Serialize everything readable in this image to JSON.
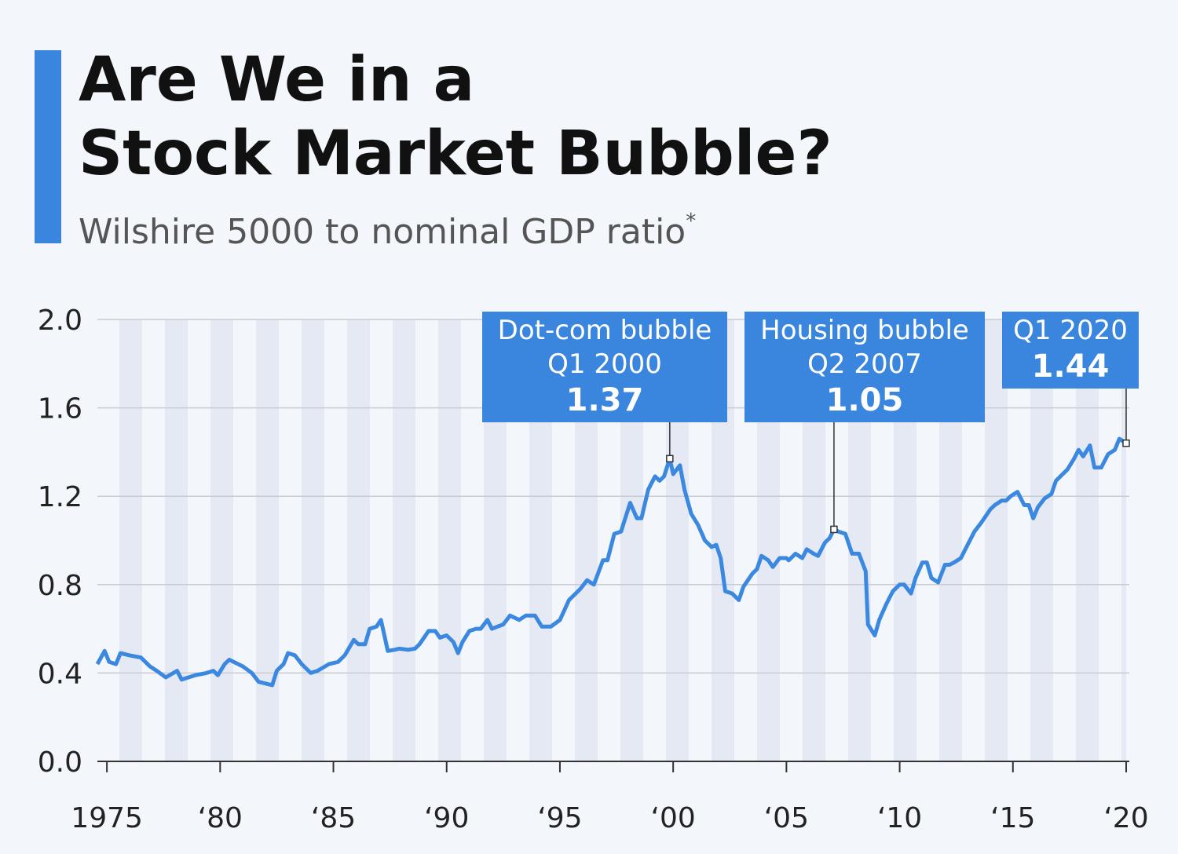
{
  "chart_data": {
    "type": "line",
    "title": [
      "Are We in a",
      "Stock Market Bubble?"
    ],
    "subtitle": "Wilshire 5000 to nominal GDP ratio",
    "subtitle_note": "*",
    "xlim": [
      1974.58,
      2020
    ],
    "xticks": [
      1975,
      {
        "value": 1980,
        "label": "‘80"
      },
      {
        "value": 1985,
        "label": "‘85"
      },
      {
        "value": 1990,
        "label": "‘90"
      },
      {
        "value": 1995,
        "label": "‘95"
      },
      {
        "value": 2000,
        "label": "‘00"
      },
      {
        "value": 2005,
        "label": "‘05"
      },
      {
        "value": 2010,
        "label": "‘10"
      },
      {
        "value": 2015,
        "label": "‘15"
      },
      {
        "value": 2020,
        "label": "‘20"
      }
    ],
    "ylim": [
      0,
      2.0
    ],
    "yticks": [
      {
        "value": 0,
        "label": "0.0"
      },
      0.4,
      0.8,
      1.2,
      1.6,
      {
        "value": 2,
        "label": "2.0"
      }
    ],
    "grid": true,
    "x": [
      1974.58,
      1974.9,
      1975.1,
      1975.4,
      1975.6,
      1976.0,
      1976.5,
      1976.9,
      1977.2,
      1977.6,
      1978.1,
      1978.3,
      1978.9,
      1979.4,
      1979.7,
      1979.9,
      1980.2,
      1980.4,
      1980.8,
      1981.0,
      1981.4,
      1981.7,
      1982.1,
      1982.3,
      1982.5,
      1982.8,
      1983.0,
      1983.3,
      1983.6,
      1984.0,
      1984.3,
      1984.8,
      1985.2,
      1985.5,
      1985.9,
      1986.1,
      1986.4,
      1986.6,
      1986.9,
      1987.1,
      1987.4,
      1987.7,
      1987.9,
      1988.3,
      1988.6,
      1988.8,
      1989.0,
      1989.2,
      1989.5,
      1989.7,
      1990.0,
      1990.3,
      1990.5,
      1990.7,
      1991.0,
      1991.3,
      1991.5,
      1991.8,
      1992.0,
      1992.5,
      1992.8,
      1993.2,
      1993.5,
      1993.9,
      1994.2,
      1994.6,
      1995.0,
      1995.4,
      1995.9,
      1996.2,
      1996.5,
      1996.9,
      1997.1,
      1997.4,
      1997.7,
      1998.1,
      1998.4,
      1998.6,
      1998.9,
      1999.2,
      1999.4,
      1999.6,
      1999.85,
      2000.0,
      2000.3,
      2000.5,
      2000.8,
      2001.1,
      2001.4,
      2001.7,
      2001.9,
      2002.1,
      2002.3,
      2002.6,
      2002.9,
      2003.1,
      2003.5,
      2003.7,
      2003.9,
      2004.2,
      2004.4,
      2004.7,
      2005.0,
      2005.1,
      2005.4,
      2005.7,
      2005.9,
      2006.2,
      2006.4,
      2006.7,
      2006.9,
      2007.1,
      2007.3,
      2007.6,
      2007.9,
      2008.2,
      2008.5,
      2008.6,
      2008.9,
      2009.1,
      2009.4,
      2009.7,
      2010.0,
      2010.2,
      2010.5,
      2010.7,
      2011.0,
      2011.2,
      2011.4,
      2011.7,
      2012.0,
      2012.2,
      2012.4,
      2012.7,
      2013.0,
      2013.3,
      2013.6,
      2014.0,
      2014.2,
      2014.5,
      2014.7,
      2014.9,
      2015.2,
      2015.5,
      2015.7,
      2015.9,
      2016.1,
      2016.4,
      2016.7,
      2016.9,
      2017.2,
      2017.4,
      2017.7,
      2017.9,
      2018.1,
      2018.4,
      2018.6,
      2018.9,
      2019.2,
      2019.5,
      2019.7,
      2020.0
    ],
    "series": [
      {
        "color": "#3b88e0",
        "values": [
          0.44,
          0.5,
          0.45,
          0.44,
          0.49,
          0.48,
          0.47,
          0.43,
          0.41,
          0.38,
          0.41,
          0.37,
          0.39,
          0.4,
          0.41,
          0.39,
          0.44,
          0.46,
          0.44,
          0.43,
          0.4,
          0.36,
          0.35,
          0.345,
          0.41,
          0.44,
          0.49,
          0.48,
          0.44,
          0.4,
          0.41,
          0.44,
          0.45,
          0.48,
          0.55,
          0.53,
          0.53,
          0.6,
          0.61,
          0.64,
          0.5,
          0.505,
          0.51,
          0.505,
          0.51,
          0.53,
          0.56,
          0.59,
          0.59,
          0.56,
          0.57,
          0.54,
          0.49,
          0.54,
          0.59,
          0.6,
          0.6,
          0.64,
          0.6,
          0.62,
          0.66,
          0.64,
          0.66,
          0.66,
          0.61,
          0.61,
          0.64,
          0.73,
          0.78,
          0.82,
          0.8,
          0.91,
          0.91,
          1.03,
          1.04,
          1.17,
          1.1,
          1.1,
          1.23,
          1.29,
          1.27,
          1.29,
          1.37,
          1.3,
          1.34,
          1.23,
          1.12,
          1.07,
          1.0,
          0.97,
          0.98,
          0.92,
          0.77,
          0.76,
          0.73,
          0.79,
          0.85,
          0.87,
          0.93,
          0.91,
          0.88,
          0.92,
          0.92,
          0.91,
          0.94,
          0.92,
          0.96,
          0.94,
          0.93,
          0.99,
          1.01,
          1.05,
          1.04,
          1.03,
          0.94,
          0.94,
          0.86,
          0.62,
          0.57,
          0.64,
          0.71,
          0.77,
          0.8,
          0.8,
          0.76,
          0.83,
          0.9,
          0.9,
          0.83,
          0.81,
          0.89,
          0.89,
          0.9,
          0.92,
          0.98,
          1.04,
          1.08,
          1.14,
          1.16,
          1.18,
          1.18,
          1.2,
          1.22,
          1.16,
          1.16,
          1.1,
          1.15,
          1.19,
          1.21,
          1.27,
          1.3,
          1.32,
          1.37,
          1.41,
          1.38,
          1.43,
          1.33,
          1.33,
          1.39,
          1.41,
          1.46,
          1.44
        ]
      }
    ],
    "annotations": [
      {
        "lines": [
          "Dot-com bubble",
          "Q1 2000"
        ],
        "label": "1.37",
        "x": 1999.85,
        "value": 1.37
      },
      {
        "lines": [
          "Housing bubble",
          "Q2 2007"
        ],
        "label": "1.05",
        "x": 2007.1,
        "value": 1.05
      },
      {
        "lines": [
          "Q1 2020"
        ],
        "label": "1.44",
        "x": 2020.0,
        "value": 1.44
      }
    ],
    "annotation_color": "#3a85de"
  }
}
